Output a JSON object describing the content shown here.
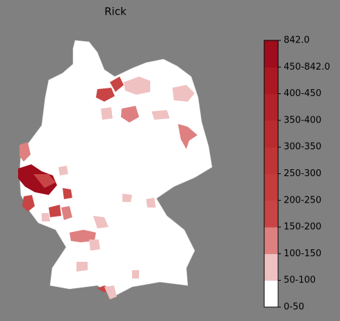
{
  "title": "Rick",
  "colorbar": {
    "labels": [
      "0-50",
      "50-100",
      "100-150",
      "150-200",
      "200-250",
      "250-300",
      "300-350",
      "350-400",
      "400-450",
      "450-842.0",
      "842.0"
    ],
    "colors": [
      "#ffffff",
      "#efc1c1",
      "#de8080",
      "#c94444",
      "#c43c3c",
      "#bf3434",
      "#b92b2f",
      "#b32228",
      "#ab1822",
      "#9f0c1c"
    ]
  }
}
